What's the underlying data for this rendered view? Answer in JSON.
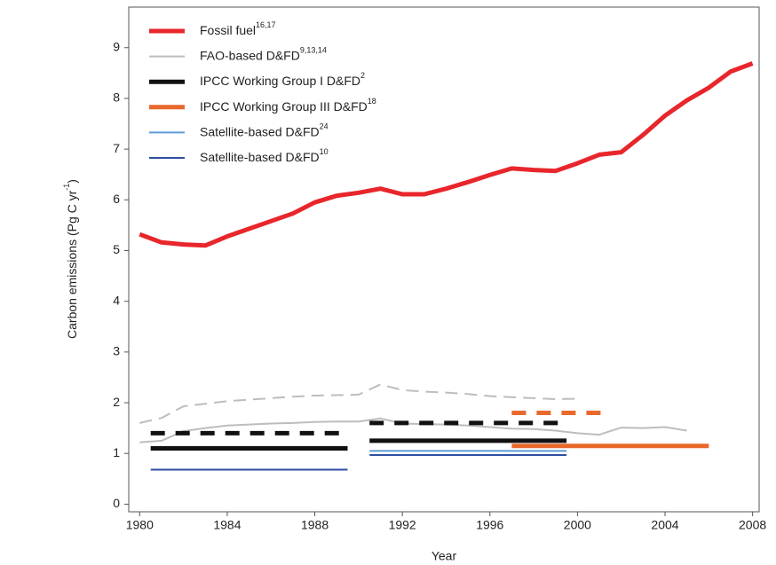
{
  "chart_data": {
    "type": "line",
    "xlabel": "Year",
    "ylabel": {
      "text": "Carbon emissions (Pg C yr",
      "sup": "-1",
      "end": ")"
    },
    "xlim": [
      1979.5,
      2008.3
    ],
    "ylim": [
      -0.15,
      9.8
    ],
    "xticks": [
      1980,
      1984,
      1988,
      1992,
      1996,
      2000,
      2004,
      2008
    ],
    "yticks": [
      0,
      1,
      2,
      3,
      4,
      5,
      6,
      7,
      8,
      9
    ],
    "grid": false,
    "legend": "upper left",
    "series": [
      {
        "name": "Fossil fuel",
        "ref": "16,17",
        "color": "#e8262b",
        "width": 5,
        "lines": [
          {
            "dashed": false,
            "x": [
              1980,
              1981,
              1982,
              1983,
              1984,
              1985,
              1986,
              1987,
              1988,
              1989,
              1990,
              1991,
              1992,
              1993,
              1994,
              1995,
              1996,
              1997,
              1998,
              1999,
              2000,
              2001,
              2002,
              2003,
              2004,
              2005,
              2006,
              2007,
              2008
            ],
            "values": [
              5.32,
              5.16,
              5.12,
              5.1,
              5.28,
              5.43,
              5.58,
              5.73,
              5.95,
              6.08,
              6.14,
              6.22,
              6.11,
              6.11,
              6.22,
              6.35,
              6.49,
              6.62,
              6.59,
              6.57,
              6.72,
              6.89,
              6.94,
              7.28,
              7.66,
              7.96,
              8.21,
              8.53,
              8.69
            ]
          }
        ]
      },
      {
        "name": "FAO-based D&FD",
        "ref": "9,13,14",
        "color": "#bdbdbd",
        "width": 2,
        "lines": [
          {
            "dashed": false,
            "x": [
              1980,
              1981,
              1982,
              1983,
              1984,
              1985,
              1986,
              1987,
              1988,
              1989,
              1990,
              1991,
              1992,
              1993,
              1994,
              1995,
              1996,
              1997,
              1998,
              1999,
              2000,
              2001,
              2002,
              2003,
              2004,
              2005
            ],
            "values": [
              1.22,
              1.25,
              1.44,
              1.5,
              1.55,
              1.57,
              1.59,
              1.6,
              1.62,
              1.63,
              1.63,
              1.69,
              1.59,
              1.58,
              1.57,
              1.55,
              1.52,
              1.49,
              1.48,
              1.45,
              1.4,
              1.37,
              1.51,
              1.5,
              1.52,
              1.45
            ]
          },
          {
            "dashed": true,
            "x": [
              1980,
              1981,
              1982,
              1983,
              1984,
              1985,
              1986,
              1987,
              1988,
              1989,
              1990,
              1991,
              1992,
              1993,
              1994,
              1995,
              1996,
              1997,
              1998,
              1999,
              2000
            ],
            "values": [
              1.6,
              1.7,
              1.93,
              1.98,
              2.03,
              2.06,
              2.09,
              2.12,
              2.14,
              2.15,
              2.16,
              2.36,
              2.25,
              2.22,
              2.2,
              2.17,
              2.13,
              2.11,
              2.09,
              2.07,
              2.08
            ]
          }
        ]
      },
      {
        "name": "IPCC Working Group I D&FD",
        "ref": "2",
        "color": "#111111",
        "width": 5,
        "lines": [
          {
            "dashed": false,
            "x": [
              1980.5,
              1989.5
            ],
            "values": [
              1.1,
              1.1
            ]
          },
          {
            "dashed": false,
            "x": [
              1990.5,
              1999.5
            ],
            "values": [
              1.25,
              1.25
            ]
          },
          {
            "dashed": true,
            "x": [
              1980.5,
              1989.5
            ],
            "values": [
              1.4,
              1.4
            ]
          },
          {
            "dashed": true,
            "x": [
              1990.5,
              1999.5
            ],
            "values": [
              1.6,
              1.6
            ]
          }
        ]
      },
      {
        "name": "IPCC Working Group III D&FD",
        "ref": "18",
        "color": "#e8692b",
        "width": 5,
        "lines": [
          {
            "dashed": false,
            "x": [
              1997,
              2006
            ],
            "values": [
              1.15,
              1.15
            ]
          },
          {
            "dashed": true,
            "x": [
              1997,
              2001.5
            ],
            "values": [
              1.8,
              1.8
            ]
          }
        ]
      },
      {
        "name": "Satellite-based D&FD",
        "ref": "24",
        "color": "#5b9bd5",
        "width": 2,
        "lines": [
          {
            "dashed": false,
            "x": [
              1990.5,
              1999.5
            ],
            "values": [
              1.05,
              1.05
            ]
          }
        ]
      },
      {
        "name": "Satellite-based D&FD",
        "ref": "10",
        "color": "#2e4ea0",
        "width": 2,
        "lines": [
          {
            "dashed": false,
            "x": [
              1980.5,
              1989.5
            ],
            "values": [
              0.68,
              0.68
            ]
          },
          {
            "dashed": false,
            "x": [
              1990.5,
              1999.5
            ],
            "values": [
              0.97,
              0.97
            ]
          }
        ]
      }
    ]
  }
}
